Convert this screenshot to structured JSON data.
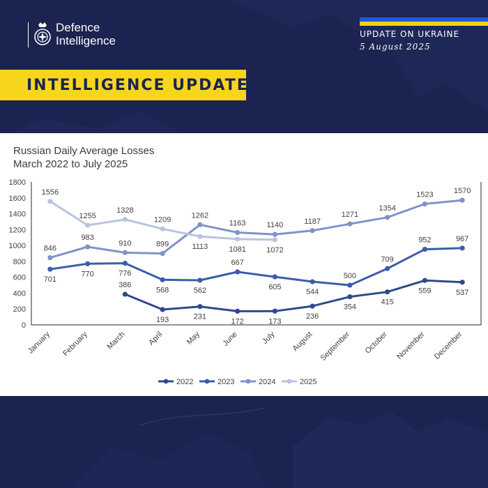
{
  "brand": {
    "line1": "Defence",
    "line2": "Intelligence"
  },
  "header": {
    "update_label": "UPDATE ON UKRAINE",
    "date": "5 August 2025"
  },
  "banner": {
    "label": "INTELLIGENCE UPDATE"
  },
  "colors": {
    "background": "#1b2350",
    "banner": "#f6d51c",
    "flag_blue": "#1f5bd6",
    "flag_yellow": "#f7d117",
    "panel": "#ffffff"
  },
  "chart_data": {
    "type": "line",
    "title": "Russian Daily Average Losses",
    "subtitle": "March 2022 to July 2025",
    "xlabel": "",
    "ylabel": "",
    "ylim": [
      0,
      1800
    ],
    "yticks": [
      0,
      200,
      400,
      600,
      800,
      1000,
      1200,
      1400,
      1600,
      1800
    ],
    "grid": false,
    "legend": "bottom",
    "categories": [
      "January",
      "February",
      "March",
      "April",
      "May",
      "June",
      "July",
      "August",
      "September",
      "October",
      "November",
      "December"
    ],
    "series": [
      {
        "name": "2022",
        "color": "#2e4a8c",
        "values": [
          null,
          null,
          386,
          193,
          231,
          172,
          173,
          236,
          354,
          415,
          559,
          537
        ]
      },
      {
        "name": "2023",
        "color": "#3a5ea8",
        "values": [
          701,
          770,
          776,
          568,
          562,
          667,
          605,
          544,
          500,
          709,
          952,
          967
        ]
      },
      {
        "name": "2024",
        "color": "#7f93c9",
        "values": [
          846,
          983,
          910,
          899,
          1262,
          1163,
          1140,
          1187,
          1271,
          1354,
          1523,
          1570
        ]
      },
      {
        "name": "2025",
        "color": "#b8c3e0",
        "values": [
          1556,
          1255,
          1328,
          1209,
          1113,
          1081,
          1072,
          null,
          null,
          null,
          null,
          null
        ]
      }
    ]
  }
}
